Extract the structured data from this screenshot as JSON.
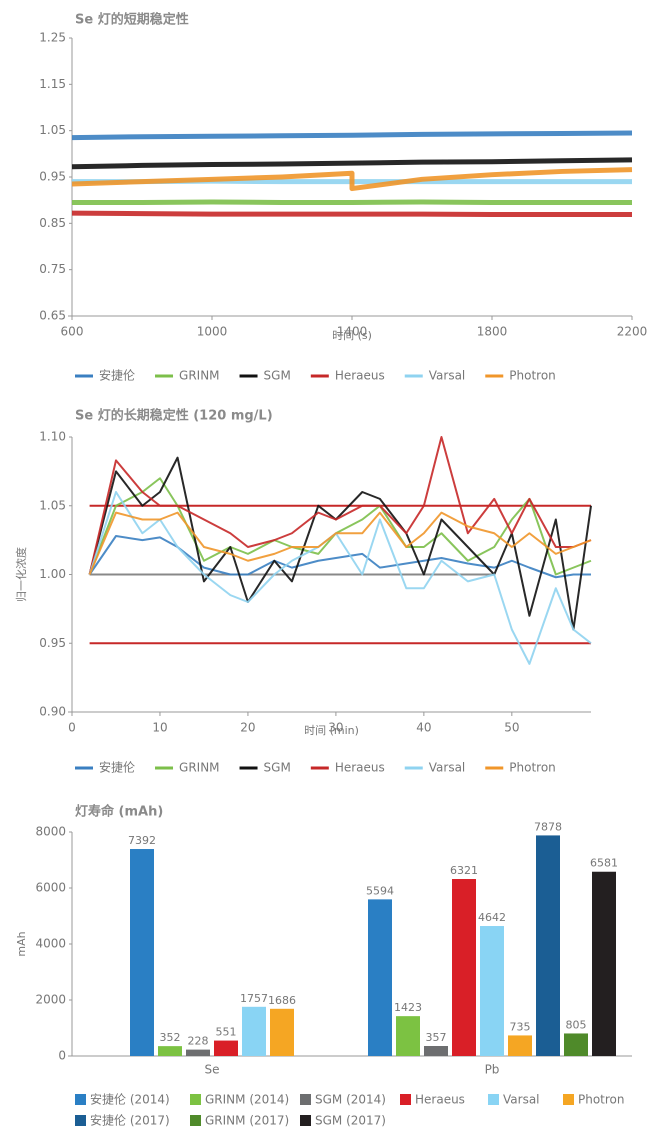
{
  "chart_data": [
    {
      "type": "line",
      "title": "Se 灯的短期稳定性",
      "x_label": "时间 (s)",
      "x": [
        600,
        800,
        1000,
        1200,
        1400,
        1400,
        1600,
        1800,
        2000,
        2200
      ],
      "xlim": [
        600,
        2200
      ],
      "xticks": [
        600,
        1000,
        1400,
        1800,
        2200
      ],
      "ylim": [
        0.65,
        1.25
      ],
      "yticks": [
        0.65,
        0.75,
        0.85,
        0.95,
        1.05,
        1.15,
        1.25
      ],
      "series": [
        {
          "name": "安捷伦",
          "color": "#3a7fc1",
          "values": [
            1.035,
            1.037,
            1.038,
            1.039,
            1.04,
            1.04,
            1.042,
            1.043,
            1.044,
            1.045
          ]
        },
        {
          "name": "GRINM",
          "color": "#7cbf4a",
          "values": [
            0.895,
            0.895,
            0.896,
            0.895,
            0.895,
            0.895,
            0.896,
            0.895,
            0.895,
            0.895
          ]
        },
        {
          "name": "SGM",
          "color": "#111111",
          "values": [
            0.972,
            0.975,
            0.977,
            0.978,
            0.98,
            0.98,
            0.982,
            0.983,
            0.985,
            0.987
          ]
        },
        {
          "name": "Heraeus",
          "color": "#c62828",
          "values": [
            0.872,
            0.871,
            0.87,
            0.87,
            0.87,
            0.87,
            0.87,
            0.869,
            0.869,
            0.869
          ]
        },
        {
          "name": "Varsal",
          "color": "#8fd3f0",
          "values": [
            0.94,
            0.94,
            0.941,
            0.94,
            0.94,
            0.94,
            0.94,
            0.94,
            0.94,
            0.94
          ]
        },
        {
          "name": "Photron",
          "color": "#f0962a",
          "values": [
            0.935,
            0.94,
            0.945,
            0.95,
            0.958,
            0.925,
            0.945,
            0.955,
            0.962,
            0.966
          ]
        }
      ]
    },
    {
      "type": "line",
      "title": "Se 灯的长期稳定性 (120 mg/L)",
      "x_label": "时间 (min)",
      "y_label": "归一化浓度",
      "x": [
        2,
        5,
        8,
        10,
        12,
        15,
        18,
        20,
        23,
        25,
        28,
        30,
        33,
        35,
        38,
        40,
        42,
        45,
        48,
        50,
        52,
        55,
        57,
        59
      ],
      "xlim": [
        0,
        59
      ],
      "xticks": [
        0,
        10,
        20,
        30,
        40,
        50
      ],
      "ylim": [
        0.9,
        1.1
      ],
      "yticks": [
        {
          "value": 0.9,
          "label": "0.90"
        },
        0.95,
        {
          "value": 1,
          "label": "1.00"
        },
        1.05,
        {
          "value": 1.1,
          "label": "1.10"
        }
      ],
      "hlines": [
        {
          "value": 1.05,
          "color": "#c62828",
          "x": [
            2,
            59
          ]
        },
        {
          "value": 0.95,
          "color": "#c62828",
          "x": [
            2,
            59
          ]
        },
        {
          "value": 1,
          "color": "#888888",
          "x": [
            2,
            48
          ]
        }
      ],
      "series": [
        {
          "name": "安捷伦",
          "color": "#3a7fc1",
          "values": [
            1.0,
            1.028,
            1.025,
            1.027,
            1.02,
            1.005,
            1.0,
            1.0,
            1.01,
            1.005,
            1.01,
            1.012,
            1.015,
            1.005,
            1.008,
            1.01,
            1.012,
            1.008,
            1.005,
            1.01,
            1.005,
            0.998,
            1.0,
            1.0
          ]
        },
        {
          "name": "GRINM",
          "color": "#7cbf4a",
          "values": [
            1.0,
            1.05,
            1.06,
            1.07,
            1.05,
            1.01,
            1.02,
            1.015,
            1.025,
            1.02,
            1.015,
            1.03,
            1.04,
            1.05,
            1.02,
            1.02,
            1.03,
            1.01,
            1.02,
            1.04,
            1.055,
            1.0,
            1.005,
            1.01
          ]
        },
        {
          "name": "SGM",
          "color": "#111111",
          "values": [
            1.0,
            1.075,
            1.05,
            1.06,
            1.085,
            0.995,
            1.02,
            0.98,
            1.01,
            0.995,
            1.05,
            1.04,
            1.06,
            1.055,
            1.03,
            1.0,
            1.04,
            1.02,
            1.0,
            1.03,
            0.97,
            1.04,
            0.96,
            1.05
          ]
        },
        {
          "name": "Heraeus",
          "color": "#c62828",
          "values": [
            1.0,
            1.083,
            1.06,
            1.05,
            1.05,
            1.04,
            1.03,
            1.02,
            1.025,
            1.03,
            1.045,
            1.04,
            1.05,
            1.05,
            1.03,
            1.05,
            1.1,
            1.03,
            1.055,
            1.03,
            1.055,
            1.02,
            1.02,
            1.025
          ]
        },
        {
          "name": "Varsal",
          "color": "#8fd3f0",
          "values": [
            1.0,
            1.06,
            1.03,
            1.04,
            1.02,
            1.0,
            0.985,
            0.98,
            1.0,
            1.01,
            1.02,
            1.03,
            1.0,
            1.04,
            0.99,
            0.99,
            1.01,
            0.995,
            1.0,
            0.96,
            0.935,
            0.99,
            0.96,
            0.95
          ]
        },
        {
          "name": "Photron",
          "color": "#f0962a",
          "values": [
            1.0,
            1.045,
            1.04,
            1.04,
            1.045,
            1.02,
            1.015,
            1.01,
            1.015,
            1.02,
            1.02,
            1.03,
            1.03,
            1.045,
            1.02,
            1.03,
            1.045,
            1.035,
            1.03,
            1.02,
            1.03,
            1.015,
            1.02,
            1.025
          ]
        }
      ]
    },
    {
      "type": "bar",
      "title": "灯寿命 (mAh)",
      "y_label": "mAh",
      "categories": [
        "Se",
        "Pb"
      ],
      "ylim": [
        0,
        8000
      ],
      "yticks": [
        0,
        2000,
        4000,
        6000,
        8000
      ],
      "series": [
        {
          "name": "安捷伦 (2014)",
          "color": "#2a7fc4",
          "values": [
            7392,
            5594
          ]
        },
        {
          "name": "GRINM (2014)",
          "color": "#7cc242",
          "values": [
            352,
            1423
          ]
        },
        {
          "name": "SGM (2014)",
          "color": "#6d6e70",
          "values": [
            228,
            357
          ]
        },
        {
          "name": "Heraeus",
          "color": "#d91f27",
          "values": [
            551,
            6321
          ]
        },
        {
          "name": "Varsal",
          "color": "#89d4f4",
          "values": [
            1757,
            4642
          ]
        },
        {
          "name": "Photron",
          "color": "#f5a623",
          "values": [
            1686,
            735
          ]
        },
        {
          "name": "安捷伦 (2017)",
          "color": "#1b5e94",
          "values": [
            null,
            7878
          ]
        },
        {
          "name": "GRINM (2017)",
          "color": "#4f8a2a",
          "values": [
            null,
            805
          ]
        },
        {
          "name": "SGM (2017)",
          "color": "#231f20",
          "values": [
            null,
            6581
          ]
        }
      ]
    }
  ]
}
